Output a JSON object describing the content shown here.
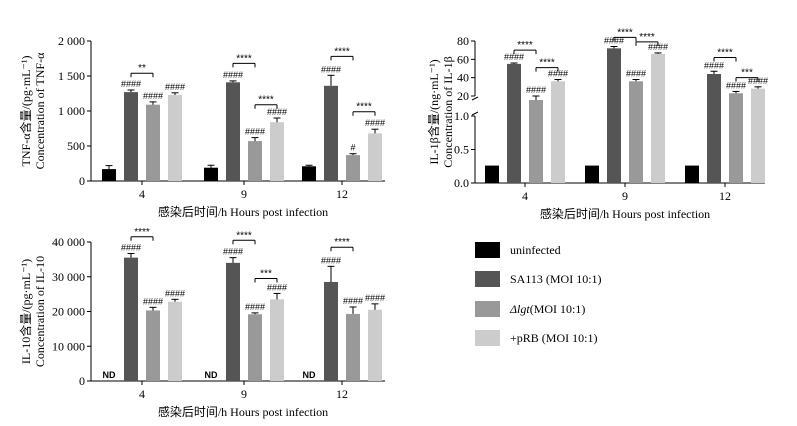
{
  "colors": {
    "uninfected": "#000000",
    "sa113": "#555555",
    "dlgt": "#999999",
    "prb": "#cccccc"
  },
  "legend": [
    {
      "key": "uninfected",
      "label": "uninfected"
    },
    {
      "key": "sa113",
      "label": "SA113 (MOI 10:1)"
    },
    {
      "key": "dlgt",
      "label_prefix": "Δlgt",
      "label_suffix": "(MOI 10:1)"
    },
    {
      "key": "prb",
      "label": "+pRB (MOI 10:1)"
    }
  ],
  "chart_data": [
    {
      "id": "tnf",
      "type": "bar",
      "ylabel": [
        "TNF-α含量/(pg·mL⁻¹)",
        "Concentration of TNF-α"
      ],
      "xlabel": "感染后时间/h Hours post infection",
      "categories": [
        "4",
        "9",
        "12"
      ],
      "ylim": [
        0,
        2000
      ],
      "yticks": [
        0,
        500,
        1000,
        1500,
        2000
      ],
      "ytick_labels": [
        "0",
        "500",
        "1 000",
        "1 500",
        "2 000"
      ],
      "series": [
        {
          "key": "uninfected",
          "values": [
            170,
            190,
            210
          ],
          "errors": [
            50,
            35,
            15
          ],
          "labels": [
            "",
            "",
            ""
          ]
        },
        {
          "key": "sa113",
          "values": [
            1270,
            1410,
            1360
          ],
          "errors": [
            30,
            20,
            150
          ],
          "labels": [
            "####",
            "####",
            "####"
          ]
        },
        {
          "key": "dlgt",
          "values": [
            1090,
            570,
            370
          ],
          "errors": [
            40,
            50,
            20
          ],
          "labels": [
            "####",
            "####",
            "#"
          ]
        },
        {
          "key": "prb",
          "values": [
            1230,
            840,
            680
          ],
          "errors": [
            30,
            60,
            60
          ],
          "labels": [
            "####",
            "####",
            "####"
          ]
        }
      ],
      "brackets": [
        {
          "group": 0,
          "from": 1,
          "to": 2,
          "label": "**",
          "y": 1540
        },
        {
          "group": 1,
          "from": 1,
          "to": 2,
          "label": "****",
          "y": 1680
        },
        {
          "group": 1,
          "from": 2,
          "to": 3,
          "label": "****",
          "y": 1090
        },
        {
          "group": 2,
          "from": 1,
          "to": 2,
          "label": "****",
          "y": 1780
        },
        {
          "group": 2,
          "from": 2,
          "to": 3,
          "label": "****",
          "y": 990
        }
      ]
    },
    {
      "id": "il1b",
      "type": "bar",
      "ylabel": [
        "IL-1β含量/(ng·mL⁻¹)",
        "Concentration of IL-1β"
      ],
      "xlabel": "感染后时间/h Hours post infection",
      "categories": [
        "4",
        "9",
        "12"
      ],
      "broken_axis": true,
      "ylim_lower": [
        0,
        1.0
      ],
      "ylim_upper": [
        20,
        80
      ],
      "yticks_lower": [
        0,
        0.5,
        1.0
      ],
      "ytick_labels_lower": [
        "0.0",
        "0.5",
        "1.0"
      ],
      "yticks_upper": [
        20,
        40,
        60,
        80
      ],
      "ytick_labels_upper": [
        "20",
        "40",
        "60",
        "80"
      ],
      "series": [
        {
          "key": "uninfected",
          "values": [
            0.26,
            0.26,
            0.26
          ],
          "errors": [
            0,
            0,
            0
          ],
          "labels": [
            "",
            "",
            ""
          ]
        },
        {
          "key": "sa113",
          "values": [
            55,
            72,
            44
          ],
          "errors": [
            1,
            2,
            3
          ],
          "labels": [
            "####",
            "####",
            "####"
          ]
        },
        {
          "key": "dlgt",
          "values": [
            19,
            36,
            23
          ],
          "errors": [
            1,
            2,
            2
          ],
          "labels": [
            "####",
            "####",
            "####"
          ]
        },
        {
          "key": "prb",
          "values": [
            36,
            66,
            28
          ],
          "errors": [
            2,
            1,
            2
          ],
          "labels": [
            "####",
            "####",
            "####"
          ]
        }
      ],
      "brackets": [
        {
          "group": 0,
          "from": 1,
          "to": 2,
          "label": "****",
          "y": 70
        },
        {
          "group": 0,
          "from": 2,
          "to": 3,
          "label": "****",
          "y": 51
        },
        {
          "group": 1,
          "from": 1,
          "to": 2,
          "label": "****",
          "y": 84
        },
        {
          "group": 1,
          "from": 2,
          "to": 3,
          "label": "****",
          "y": 79
        },
        {
          "group": 2,
          "from": 1,
          "to": 2,
          "label": "****",
          "y": 62
        },
        {
          "group": 2,
          "from": 2,
          "to": 3,
          "label": "***",
          "y": 40
        }
      ]
    },
    {
      "id": "il10",
      "type": "bar",
      "ylabel": [
        "IL-10含量/(pg·mL⁻¹)",
        "Concentration of IL-10"
      ],
      "xlabel": "感染后时间/h Hours post infection",
      "categories": [
        "4",
        "9",
        "12"
      ],
      "ylim": [
        0,
        40000
      ],
      "yticks": [
        0,
        10000,
        20000,
        30000,
        40000
      ],
      "ytick_labels": [
        "0",
        "10 000",
        "20 000",
        "30 000",
        "40 000"
      ],
      "series": [
        {
          "key": "uninfected",
          "values": [
            0,
            0,
            0
          ],
          "errors": [
            0,
            0,
            0
          ],
          "labels": [
            "ND",
            "ND",
            "ND"
          ]
        },
        {
          "key": "sa113",
          "values": [
            35500,
            34000,
            28500
          ],
          "errors": [
            1200,
            1500,
            4500
          ],
          "labels": [
            "####",
            "####",
            "####"
          ]
        },
        {
          "key": "dlgt",
          "values": [
            20300,
            19200,
            19300
          ],
          "errors": [
            900,
            400,
            2000
          ],
          "labels": [
            "####",
            "####",
            "####"
          ]
        },
        {
          "key": "prb",
          "values": [
            22800,
            23500,
            20500
          ],
          "errors": [
            700,
            1700,
            1700
          ],
          "labels": [
            "####",
            "####",
            "####"
          ]
        }
      ],
      "brackets": [
        {
          "group": 0,
          "from": 1,
          "to": 2,
          "label": "****",
          "y": 41500
        },
        {
          "group": 1,
          "from": 1,
          "to": 2,
          "label": "****",
          "y": 40500
        },
        {
          "group": 1,
          "from": 2,
          "to": 3,
          "label": "***",
          "y": 29500
        },
        {
          "group": 2,
          "from": 1,
          "to": 2,
          "label": "****",
          "y": 38500
        }
      ]
    }
  ]
}
